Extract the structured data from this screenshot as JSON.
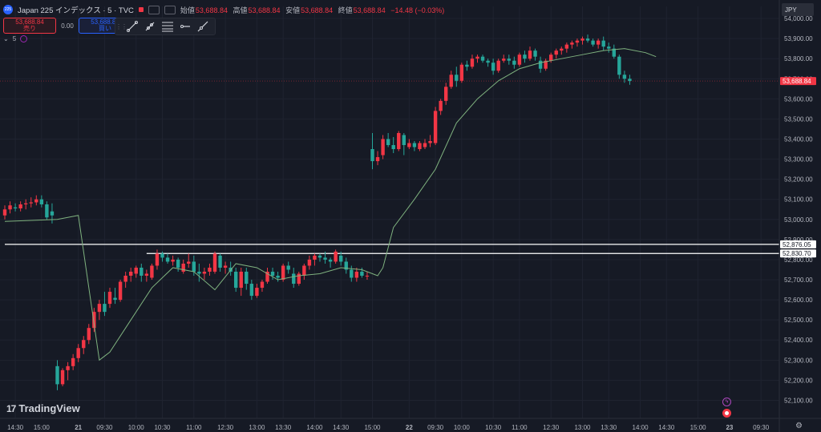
{
  "header": {
    "symbol_badge": "225",
    "symbol_title": "Japan 225 インデックス · 5 · TVC",
    "ohlc": [
      {
        "label": "始値",
        "value": "53,688.84"
      },
      {
        "label": "高値",
        "value": "53,688.84"
      },
      {
        "label": "安値",
        "value": "53,688.84"
      },
      {
        "label": "終値",
        "value": "53,688.84"
      }
    ],
    "change": "−14.48 (−0.03%)"
  },
  "trade": {
    "sell_price": "53,688.84",
    "sell_label": "売り",
    "spread": "0.00",
    "buy_price": "53,688.84",
    "buy_label": "買い"
  },
  "indicator": {
    "label": "5"
  },
  "currency": "JPY",
  "branding": {
    "logo_mark": "17",
    "name": "TradingView"
  },
  "colors": {
    "up": "#f23645",
    "down": "#26a69a",
    "ma": "#7fb27f",
    "hline": "#ffffff",
    "price_tag": "#f23645"
  },
  "chart_data": {
    "type": "candlestick",
    "ylim": [
      52050,
      54060
    ],
    "y_ticks": [
      52100,
      52200,
      52300,
      52400,
      52500,
      52600,
      52700,
      52800,
      52900,
      53000,
      53100,
      53200,
      53300,
      53400,
      53500,
      53600,
      53700,
      53800,
      53900,
      54000
    ],
    "y_tick_labels": [
      "52,100.00",
      "52,200.00",
      "52,300.00",
      "52,400.00",
      "52,500.00",
      "52,600.00",
      "52,700.00",
      "52,800.00",
      "52,900.00",
      "53,000.00",
      "53,100.00",
      "53,200.00",
      "53,300.00",
      "53,400.00",
      "53,500.00",
      "53,600.00",
      "53,700.00",
      "53,800.00",
      "53,900.00",
      "54,000.00"
    ],
    "x_labels": [
      {
        "i": 2,
        "text": "14:30"
      },
      {
        "i": 7,
        "text": "15:00"
      },
      {
        "i": 14,
        "text": "21",
        "bold": true
      },
      {
        "i": 19,
        "text": "09:30"
      },
      {
        "i": 25,
        "text": "10:00"
      },
      {
        "i": 30,
        "text": "10:30"
      },
      {
        "i": 36,
        "text": "11:00"
      },
      {
        "i": 42,
        "text": "12:30"
      },
      {
        "i": 48,
        "text": "13:00"
      },
      {
        "i": 53,
        "text": "13:30"
      },
      {
        "i": 59,
        "text": "14:00"
      },
      {
        "i": 64,
        "text": "14:30"
      },
      {
        "i": 70,
        "text": "15:00"
      },
      {
        "i": 77,
        "text": "22",
        "bold": true
      },
      {
        "i": 82,
        "text": "09:30"
      },
      {
        "i": 87,
        "text": "10:00"
      },
      {
        "i": 93,
        "text": "10:30"
      },
      {
        "i": 98,
        "text": "11:00"
      },
      {
        "i": 104,
        "text": "12:30"
      },
      {
        "i": 110,
        "text": "13:00"
      },
      {
        "i": 115,
        "text": "13:30"
      },
      {
        "i": 121,
        "text": "14:00"
      },
      {
        "i": 126,
        "text": "14:30"
      },
      {
        "i": 132,
        "text": "15:00"
      },
      {
        "i": 138,
        "text": "23",
        "bold": true
      },
      {
        "i": 144,
        "text": "09:30"
      }
    ],
    "candles": [
      [
        53020,
        53070,
        53000,
        53050
      ],
      [
        53050,
        53090,
        53030,
        53070
      ],
      [
        53060,
        53080,
        53040,
        53055
      ],
      [
        53055,
        53090,
        53040,
        53075
      ],
      [
        53075,
        53100,
        53050,
        53080
      ],
      [
        53080,
        53110,
        53060,
        53085
      ],
      [
        53085,
        53120,
        53070,
        53100
      ],
      [
        53100,
        53120,
        53060,
        53075
      ],
      [
        53075,
        53090,
        53000,
        53010
      ],
      [
        53040,
        53080,
        52980,
        53020
      ],
      [
        52270,
        52300,
        52150,
        52180
      ],
      [
        52180,
        52260,
        52170,
        52250
      ],
      [
        52250,
        52290,
        52200,
        52270
      ],
      [
        52270,
        52330,
        52250,
        52310
      ],
      [
        52310,
        52380,
        52290,
        52360
      ],
      [
        52360,
        52420,
        52330,
        52400
      ],
      [
        52400,
        52480,
        52380,
        52460
      ],
      [
        52460,
        52560,
        52440,
        52540
      ],
      [
        52540,
        52600,
        52500,
        52580
      ],
      [
        52580,
        52640,
        52520,
        52540
      ],
      [
        52580,
        52660,
        52560,
        52640
      ],
      [
        52610,
        52660,
        52580,
        52600
      ],
      [
        52600,
        52700,
        52590,
        52690
      ],
      [
        52690,
        52740,
        52660,
        52720
      ],
      [
        52720,
        52760,
        52690,
        52740
      ],
      [
        52730,
        52770,
        52710,
        52760
      ],
      [
        52760,
        52780,
        52690,
        52720
      ],
      [
        52720,
        52750,
        52690,
        52730
      ],
      [
        52710,
        52780,
        52700,
        52770
      ],
      [
        52770,
        52850,
        52750,
        52830
      ],
      [
        52830,
        52840,
        52790,
        52810
      ],
      [
        52810,
        52830,
        52780,
        52790
      ],
      [
        52790,
        52820,
        52770,
        52800
      ],
      [
        52800,
        52810,
        52740,
        52760
      ],
      [
        52740,
        52800,
        52730,
        52780
      ],
      [
        52780,
        52830,
        52760,
        52790
      ],
      [
        52790,
        52820,
        52720,
        52740
      ],
      [
        52740,
        52780,
        52690,
        52730
      ],
      [
        52730,
        52760,
        52700,
        52740
      ],
      [
        52740,
        52780,
        52720,
        52760
      ],
      [
        52740,
        52840,
        52730,
        52830
      ],
      [
        52820,
        52830,
        52740,
        52760
      ],
      [
        52760,
        52790,
        52730,
        52770
      ],
      [
        52760,
        52790,
        52720,
        52740
      ],
      [
        52740,
        52760,
        52640,
        52660
      ],
      [
        52660,
        52760,
        52620,
        52740
      ],
      [
        52740,
        52760,
        52650,
        52680
      ],
      [
        52680,
        52700,
        52600,
        52620
      ],
      [
        52620,
        52680,
        52610,
        52660
      ],
      [
        52660,
        52700,
        52640,
        52690
      ],
      [
        52690,
        52760,
        52680,
        52740
      ],
      [
        52740,
        52760,
        52700,
        52720
      ],
      [
        52720,
        52740,
        52690,
        52710
      ],
      [
        52700,
        52780,
        52690,
        52770
      ],
      [
        52770,
        52790,
        52730,
        52750
      ],
      [
        52730,
        52760,
        52660,
        52680
      ],
      [
        52680,
        52740,
        52670,
        52730
      ],
      [
        52720,
        52780,
        52700,
        52770
      ],
      [
        52770,
        52820,
        52750,
        52800
      ],
      [
        52800,
        52830,
        52770,
        52820
      ],
      [
        52820,
        52830,
        52790,
        52810
      ],
      [
        52810,
        52840,
        52780,
        52800
      ],
      [
        52800,
        52810,
        52760,
        52790
      ],
      [
        52790,
        52850,
        52780,
        52840
      ],
      [
        52820,
        52840,
        52770,
        52790
      ],
      [
        52790,
        52810,
        52730,
        52750
      ],
      [
        52750,
        52770,
        52690,
        52710
      ],
      [
        52710,
        52760,
        52690,
        52740
      ],
      [
        52740,
        52760,
        52710,
        52720
      ],
      [
        52720,
        52740,
        52700,
        52720
      ],
      [
        53350,
        53430,
        53250,
        53290
      ],
      [
        53290,
        53340,
        53270,
        53310
      ],
      [
        53320,
        53420,
        53300,
        53400
      ],
      [
        53400,
        53430,
        53360,
        53370
      ],
      [
        53370,
        53410,
        53330,
        53350
      ],
      [
        53350,
        53440,
        53340,
        53430
      ],
      [
        53420,
        53430,
        53320,
        53370
      ],
      [
        53360,
        53400,
        53350,
        53380
      ],
      [
        53380,
        53390,
        53340,
        53360
      ],
      [
        53350,
        53390,
        53340,
        53380
      ],
      [
        53360,
        53400,
        53350,
        53380
      ],
      [
        53380,
        53420,
        53360,
        53390
      ],
      [
        53380,
        53560,
        53370,
        53540
      ],
      [
        53540,
        53600,
        53520,
        53590
      ],
      [
        53590,
        53680,
        53570,
        53660
      ],
      [
        53660,
        53740,
        53650,
        53720
      ],
      [
        53720,
        53760,
        53660,
        53690
      ],
      [
        53690,
        53780,
        53680,
        53770
      ],
      [
        53770,
        53790,
        53740,
        53760
      ],
      [
        53760,
        53820,
        53750,
        53800
      ],
      [
        53800,
        53820,
        53780,
        53810
      ],
      [
        53810,
        53820,
        53780,
        53790
      ],
      [
        53790,
        53800,
        53760,
        53780
      ],
      [
        53780,
        53800,
        53720,
        53740
      ],
      [
        53740,
        53800,
        53730,
        53790
      ],
      [
        53790,
        53820,
        53780,
        53800
      ],
      [
        53800,
        53820,
        53770,
        53790
      ],
      [
        53790,
        53810,
        53750,
        53770
      ],
      [
        53770,
        53830,
        53760,
        53820
      ],
      [
        53820,
        53840,
        53780,
        53800
      ],
      [
        53800,
        53860,
        53790,
        53840
      ],
      [
        53840,
        53850,
        53790,
        53810
      ],
      [
        53790,
        53810,
        53730,
        53750
      ],
      [
        53750,
        53800,
        53740,
        53790
      ],
      [
        53790,
        53830,
        53780,
        53820
      ],
      [
        53820,
        53850,
        53800,
        53840
      ],
      [
        53840,
        53860,
        53820,
        53850
      ],
      [
        53850,
        53880,
        53830,
        53870
      ],
      [
        53870,
        53890,
        53850,
        53880
      ],
      [
        53880,
        53900,
        53860,
        53890
      ],
      [
        53890,
        53910,
        53870,
        53900
      ],
      [
        53900,
        53920,
        53880,
        53890
      ],
      [
        53890,
        53900,
        53860,
        53870
      ],
      [
        53870,
        53900,
        53850,
        53890
      ],
      [
        53890,
        53910,
        53840,
        53860
      ],
      [
        53860,
        53880,
        53830,
        53850
      ],
      [
        53850,
        53870,
        53800,
        53810
      ],
      [
        53810,
        53820,
        53700,
        53720
      ],
      [
        53720,
        53740,
        53680,
        53700
      ],
      [
        53700,
        53720,
        53670,
        53689
      ]
    ],
    "ma_line": [
      [
        0,
        52990
      ],
      [
        10,
        53000
      ],
      [
        14,
        53020
      ],
      [
        18,
        52300
      ],
      [
        20,
        52340
      ],
      [
        24,
        52500
      ],
      [
        28,
        52660
      ],
      [
        32,
        52760
      ],
      [
        36,
        52740
      ],
      [
        40,
        52650
      ],
      [
        44,
        52780
      ],
      [
        48,
        52760
      ],
      [
        52,
        52700
      ],
      [
        56,
        52720
      ],
      [
        60,
        52730
      ],
      [
        64,
        52760
      ],
      [
        68,
        52750
      ],
      [
        71,
        52720
      ],
      [
        72,
        52760
      ],
      [
        74,
        52960
      ],
      [
        78,
        53100
      ],
      [
        82,
        53250
      ],
      [
        86,
        53480
      ],
      [
        90,
        53600
      ],
      [
        94,
        53690
      ],
      [
        98,
        53750
      ],
      [
        102,
        53780
      ],
      [
        106,
        53800
      ],
      [
        110,
        53820
      ],
      [
        114,
        53840
      ],
      [
        118,
        53850
      ],
      [
        122,
        53830
      ],
      [
        124,
        53810
      ]
    ],
    "hlines": [
      {
        "value": 52876.05,
        "label": "52,876.05",
        "from": 0
      },
      {
        "value": 52830.7,
        "label": "52,830.70",
        "from": 27
      }
    ],
    "last_price": {
      "value": 53688.84,
      "label": "53,688.84"
    }
  }
}
